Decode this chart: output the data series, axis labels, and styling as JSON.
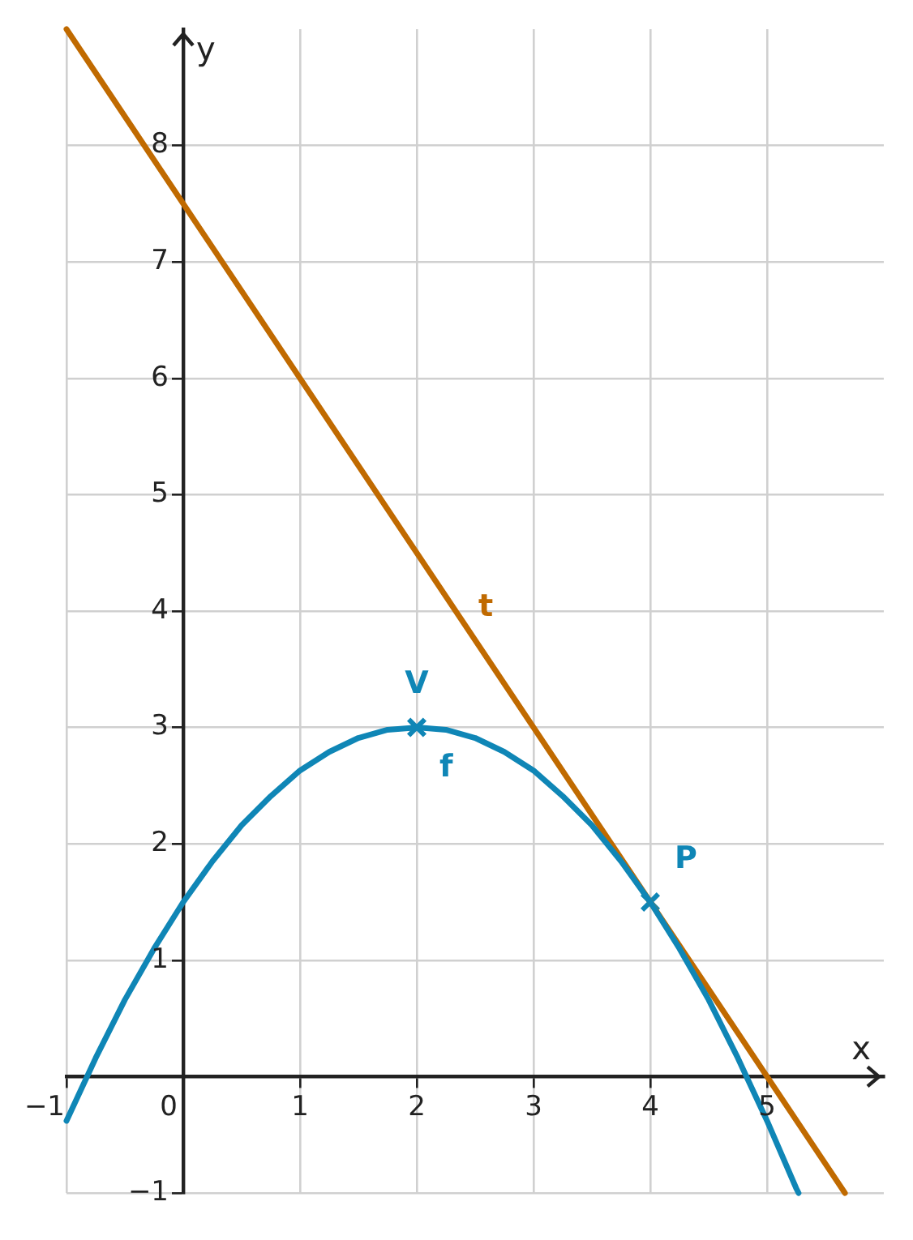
{
  "chart_data": {
    "type": "line",
    "xlabel": "x",
    "ylabel": "y",
    "xlim": [
      -1,
      6
    ],
    "ylim": [
      -1,
      9
    ],
    "xticks": [
      {
        "value": -1,
        "label": "−1"
      },
      0,
      1,
      2,
      3,
      4,
      5
    ],
    "yticks": [
      {
        "value": -1,
        "label": "−1"
      },
      {
        "value": 0,
        "label": null
      },
      1,
      2,
      3,
      4,
      5,
      6,
      7,
      8
    ],
    "grid": true,
    "legend": false,
    "line_style": "solid",
    "series": [
      {
        "name": "f",
        "color": "#0f86b6",
        "x": [
          -1,
          -0.75,
          -0.5,
          -0.25,
          0,
          0.25,
          0.5,
          0.75,
          1,
          1.25,
          1.5,
          1.75,
          2,
          2.25,
          2.5,
          2.75,
          3,
          3.25,
          3.5,
          3.75,
          4,
          4.25,
          4.5,
          4.75,
          5,
          5.25,
          5.27
        ],
        "values": [
          -0.38,
          0.16,
          0.66,
          1.1,
          1.5,
          1.85,
          2.16,
          2.41,
          2.63,
          2.79,
          2.91,
          2.98,
          3,
          2.98,
          2.91,
          2.79,
          2.63,
          2.41,
          2.16,
          1.85,
          1.5,
          1.1,
          0.66,
          0.16,
          -0.38,
          -0.96,
          -1
        ]
      },
      {
        "name": "t",
        "color": "#c06a00",
        "x": [
          -1,
          5.667
        ],
        "values": [
          9,
          -1
        ]
      },
      {
        "type": "scatter",
        "color": "#0f86b6",
        "marker": "cross",
        "x": [
          2,
          4
        ],
        "values": [
          3,
          1.5
        ]
      }
    ],
    "annotations": [
      {
        "text": "V",
        "x": 2,
        "y": 3
      },
      {
        "text": "P",
        "x": 4,
        "y": 1.5
      }
    ]
  }
}
